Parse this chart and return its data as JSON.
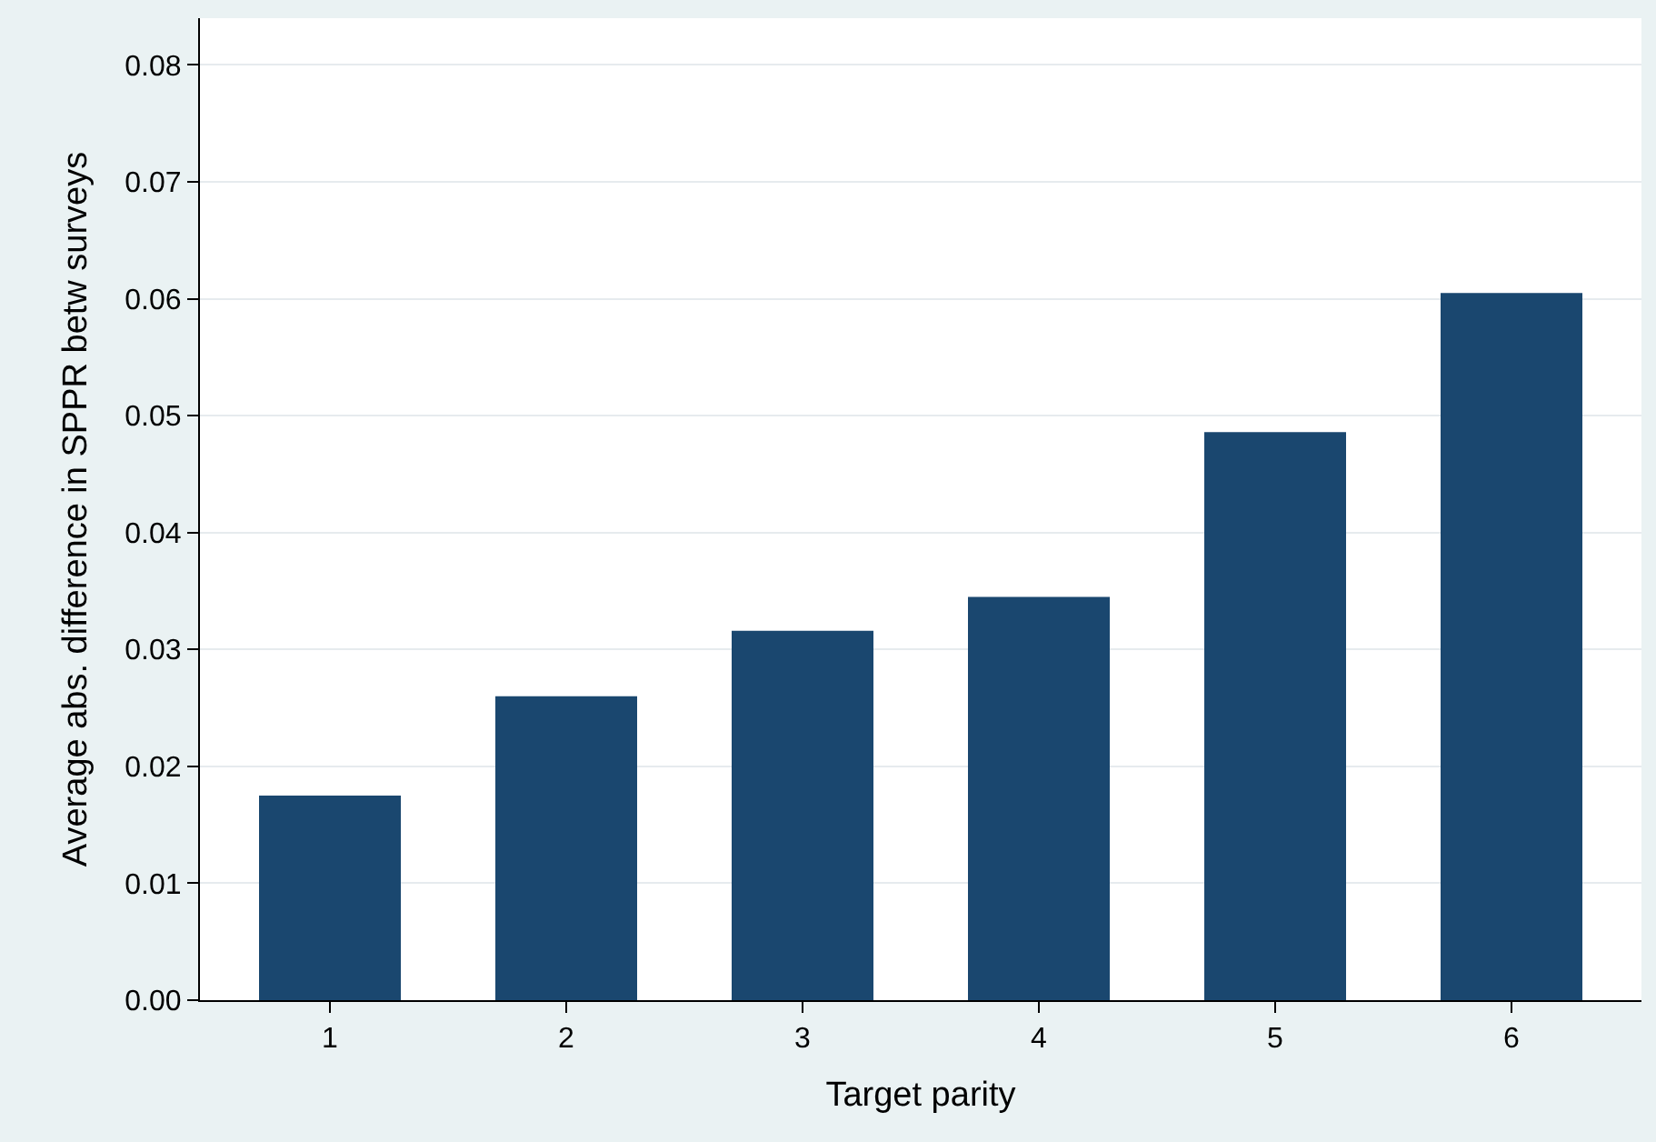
{
  "chart_data": {
    "type": "bar",
    "xlabel": "Target parity",
    "ylabel": "Average abs. difference in SPPR betw surveys",
    "categories": [
      "1",
      "2",
      "3",
      "4",
      "5",
      "6"
    ],
    "values": [
      0.0175,
      0.026,
      0.0316,
      0.0345,
      0.0486,
      0.0605
    ],
    "color": "#1a476f",
    "ylim": [
      0,
      0.084
    ],
    "yticks": [
      {
        "value": 0,
        "label": "0.00"
      },
      {
        "value": 0.01,
        "label": "0.01"
      },
      {
        "value": 0.02,
        "label": "0.02"
      },
      {
        "value": 0.03,
        "label": "0.03"
      },
      {
        "value": 0.04,
        "label": "0.04"
      },
      {
        "value": 0.05,
        "label": "0.05"
      },
      {
        "value": 0.06,
        "label": "0.06"
      },
      {
        "value": 0.07,
        "label": "0.07"
      },
      {
        "value": 0.08,
        "label": "0.08"
      }
    ],
    "grid": "y"
  }
}
